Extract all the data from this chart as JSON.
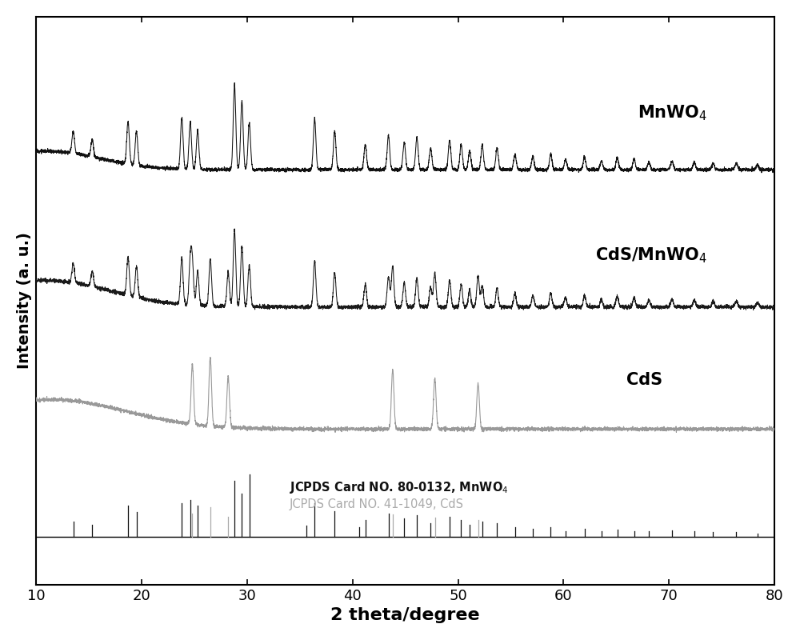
{
  "xlabel": "2 theta/degree",
  "ylabel": "Intensity (a. u.)",
  "xlim": [
    10,
    80
  ],
  "MnWO4_label": "MnWO$_4$",
  "CdS_MnWO4_label": "CdS/MnWO$_4$",
  "CdS_label": "CdS",
  "ref_MnWO4_label": "JCPDS Card NO. 80-0132, MnWO$_4$",
  "ref_CdS_label": "JCPDS Card NO. 41-1049, CdS",
  "MnWO4_color": "#111111",
  "CdS_MnWO4_color": "#1a1a1a",
  "CdS_color": "#999999",
  "ref_MnWO4_color": "#111111",
  "ref_CdS_color": "#aaaaaa",
  "MnWO4_peaks": [
    13.5,
    15.3,
    18.7,
    19.5,
    23.8,
    24.6,
    25.3,
    28.8,
    29.5,
    30.2,
    36.4,
    38.3,
    41.2,
    43.4,
    44.9,
    46.1,
    47.4,
    49.2,
    50.3,
    51.1,
    52.3,
    53.7,
    55.4,
    57.1,
    58.8,
    60.2,
    62.0,
    63.6,
    65.1,
    66.7,
    68.1,
    70.3,
    72.4,
    74.2,
    76.4,
    78.4
  ],
  "MnWO4_int": [
    0.25,
    0.2,
    0.5,
    0.4,
    0.6,
    0.55,
    0.45,
    1.0,
    0.8,
    0.55,
    0.6,
    0.45,
    0.3,
    0.4,
    0.32,
    0.38,
    0.25,
    0.35,
    0.3,
    0.22,
    0.28,
    0.25,
    0.18,
    0.15,
    0.18,
    0.12,
    0.15,
    0.1,
    0.14,
    0.12,
    0.09,
    0.1,
    0.09,
    0.08,
    0.08,
    0.06
  ],
  "CdS_peaks": [
    24.8,
    26.5,
    28.2,
    43.8,
    47.8,
    51.9
  ],
  "CdS_int": [
    0.65,
    0.75,
    0.55,
    0.65,
    0.55,
    0.5
  ],
  "ref_MnWO4_peaks": [
    13.5,
    15.3,
    18.7,
    19.5,
    23.8,
    24.6,
    25.3,
    28.8,
    29.5,
    30.2,
    35.6,
    36.4,
    38.3,
    40.6,
    41.2,
    43.4,
    44.9,
    46.1,
    47.4,
    49.2,
    50.3,
    51.1,
    52.3,
    53.7,
    55.4,
    57.1,
    58.8,
    60.2,
    62.0,
    63.6,
    65.1,
    66.7,
    68.1,
    70.3,
    72.4,
    74.2,
    76.4,
    78.4
  ],
  "ref_MnWO4_int": [
    0.25,
    0.2,
    0.5,
    0.4,
    0.55,
    0.6,
    0.5,
    0.9,
    0.7,
    1.0,
    0.18,
    0.55,
    0.42,
    0.16,
    0.28,
    0.38,
    0.3,
    0.35,
    0.22,
    0.32,
    0.28,
    0.2,
    0.25,
    0.22,
    0.16,
    0.14,
    0.16,
    0.1,
    0.14,
    0.1,
    0.12,
    0.1,
    0.09,
    0.11,
    0.09,
    0.08,
    0.08,
    0.06
  ],
  "ref_CdS_peaks": [
    24.8,
    26.5,
    28.2,
    43.8,
    47.8,
    51.9
  ],
  "ref_CdS_int": [
    0.6,
    0.75,
    0.5,
    0.58,
    0.48,
    0.42
  ]
}
